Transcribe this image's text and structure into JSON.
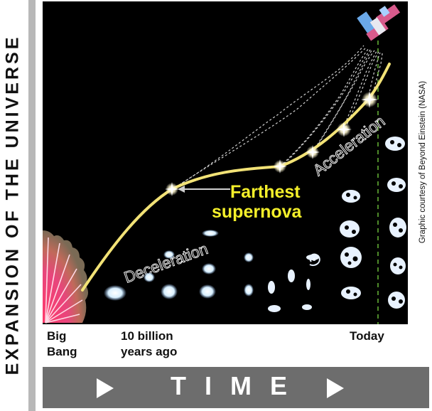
{
  "y_axis_label": "EXPANSION OF THE UNIVERSE",
  "x_axis": {
    "start_label_line1": "Big",
    "start_label_line2": "Bang",
    "mid_label_line1": "10 billion",
    "mid_label_line2": "years ago",
    "end_label": "Today"
  },
  "time_label": "TIME",
  "curve_labels": {
    "deceleration": "Deceleration",
    "acceleration": "Acceleration"
  },
  "callout": {
    "line1": "Farthest",
    "line2": "supernova"
  },
  "credit": "Graphic courtesy of Beyond Einstein (NASA)",
  "colors": {
    "curve": "#f2e276",
    "callout_text": "#f4ef2a",
    "panel_bg": "#000000",
    "time_bar": "#6d6d6d",
    "side_bar": "#b8b8b8",
    "today_line": "#4e8a2a"
  },
  "icons": [
    "telescope-icon",
    "big-bang-burst-icon",
    "galaxy-icon",
    "supernova-star-icon",
    "arrow-right-icon"
  ]
}
